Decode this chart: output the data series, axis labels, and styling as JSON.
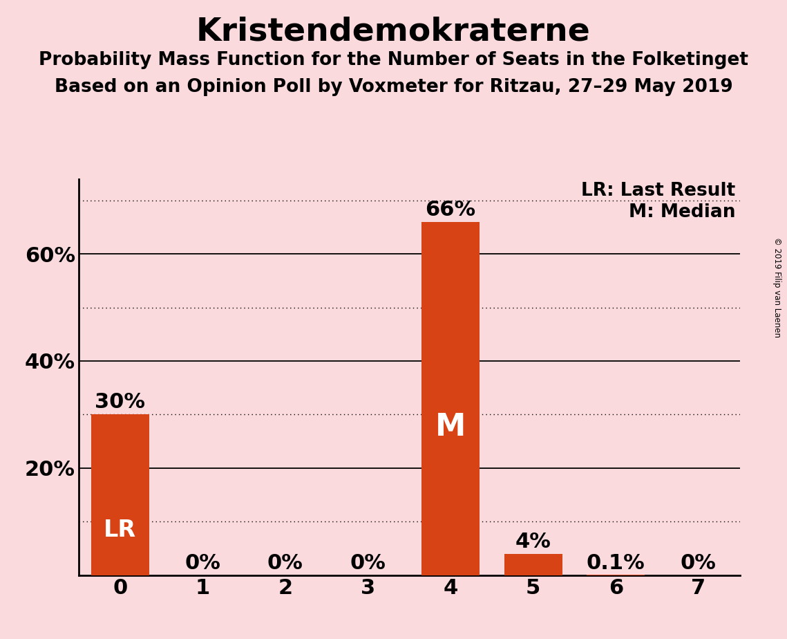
{
  "title": "Kristendemokraterne",
  "subtitle1": "Probability Mass Function for the Number of Seats in the Folketinget",
  "subtitle2": "Based on an Opinion Poll by Voxmeter for Ritzau, 27–29 May 2019",
  "copyright": "© 2019 Filip van Laenen",
  "categories": [
    0,
    1,
    2,
    3,
    4,
    5,
    6,
    7
  ],
  "values": [
    0.3,
    0.0,
    0.0,
    0.0,
    0.66,
    0.04,
    0.001,
    0.0
  ],
  "bar_color": "#d84315",
  "background_color": "#fadadd",
  "bar_labels": [
    "30%",
    "0%",
    "0%",
    "0%",
    "66%",
    "4%",
    "0.1%",
    "0%"
  ],
  "LR_bar": 0,
  "M_bar": 4,
  "legend_text1": "LR: Last Result",
  "legend_text2": "M: Median",
  "yticks": [
    0.2,
    0.4,
    0.6
  ],
  "ytick_labels": [
    "20%",
    "40%",
    "60%"
  ],
  "ylim": [
    0,
    0.74
  ],
  "grid_dotted_ticks": [
    0.1,
    0.3,
    0.5,
    0.7
  ],
  "grid_solid_ticks": [
    0.2,
    0.4,
    0.6
  ],
  "title_fontsize": 34,
  "subtitle_fontsize": 19,
  "tick_fontsize": 22,
  "bar_label_fontsize": 22,
  "LR_fontsize": 24,
  "M_fontsize": 32,
  "legend_fontsize": 19
}
